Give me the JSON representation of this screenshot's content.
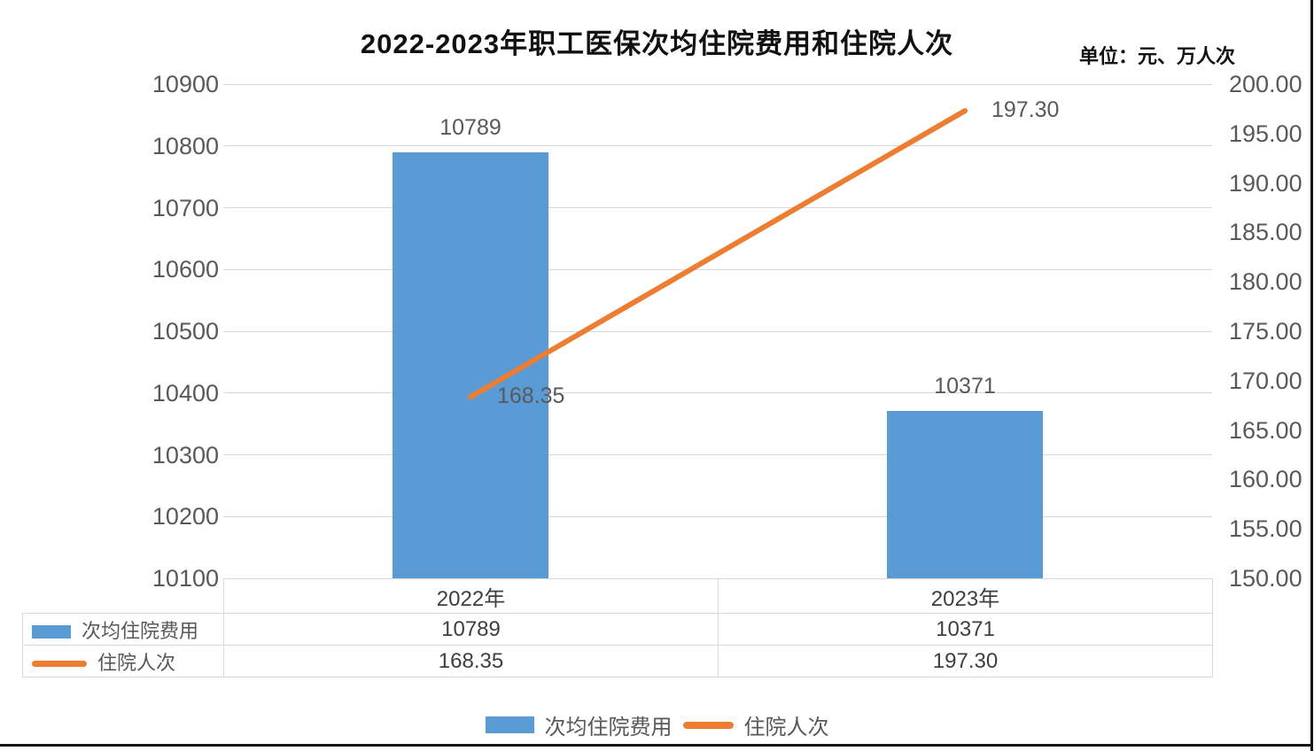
{
  "title": "2022-2023年职工医保次均住院费用和住院人次",
  "unit_label": "单位：元、万人次",
  "colors": {
    "bar": "#5B9BD5",
    "line": "#ED7D31",
    "grid": "#D9D9D9",
    "table_border": "#D9D9D9",
    "tick_text": "#595959",
    "page_border": "#151515"
  },
  "chart_data": {
    "type": "combo",
    "categories": [
      "2022年",
      "2023年"
    ],
    "series": [
      {
        "name": "次均住院费用",
        "type": "bar",
        "axis": "left",
        "values": [
          10789,
          10371
        ],
        "labels": [
          "10789",
          "10371"
        ]
      },
      {
        "name": "住院人次",
        "type": "line",
        "axis": "right",
        "values": [
          168.35,
          197.3
        ],
        "labels": [
          "168.35",
          "197.30"
        ]
      }
    ],
    "y_axis_left": {
      "min": 10100,
      "max": 10900,
      "step": 100,
      "ticks": [
        "10900",
        "10800",
        "10700",
        "10600",
        "10500",
        "10400",
        "10300",
        "10200",
        "10100"
      ]
    },
    "y_axis_right": {
      "min": 150,
      "max": 200,
      "step": 5,
      "ticks": [
        "200.00",
        "195.00",
        "190.00",
        "185.00",
        "180.00",
        "175.00",
        "170.00",
        "165.00",
        "160.00",
        "155.00",
        "150.00"
      ]
    },
    "grid": true,
    "legend_position": "bottom"
  },
  "legend": {
    "items": [
      "次均住院费用",
      "住院人次"
    ]
  }
}
